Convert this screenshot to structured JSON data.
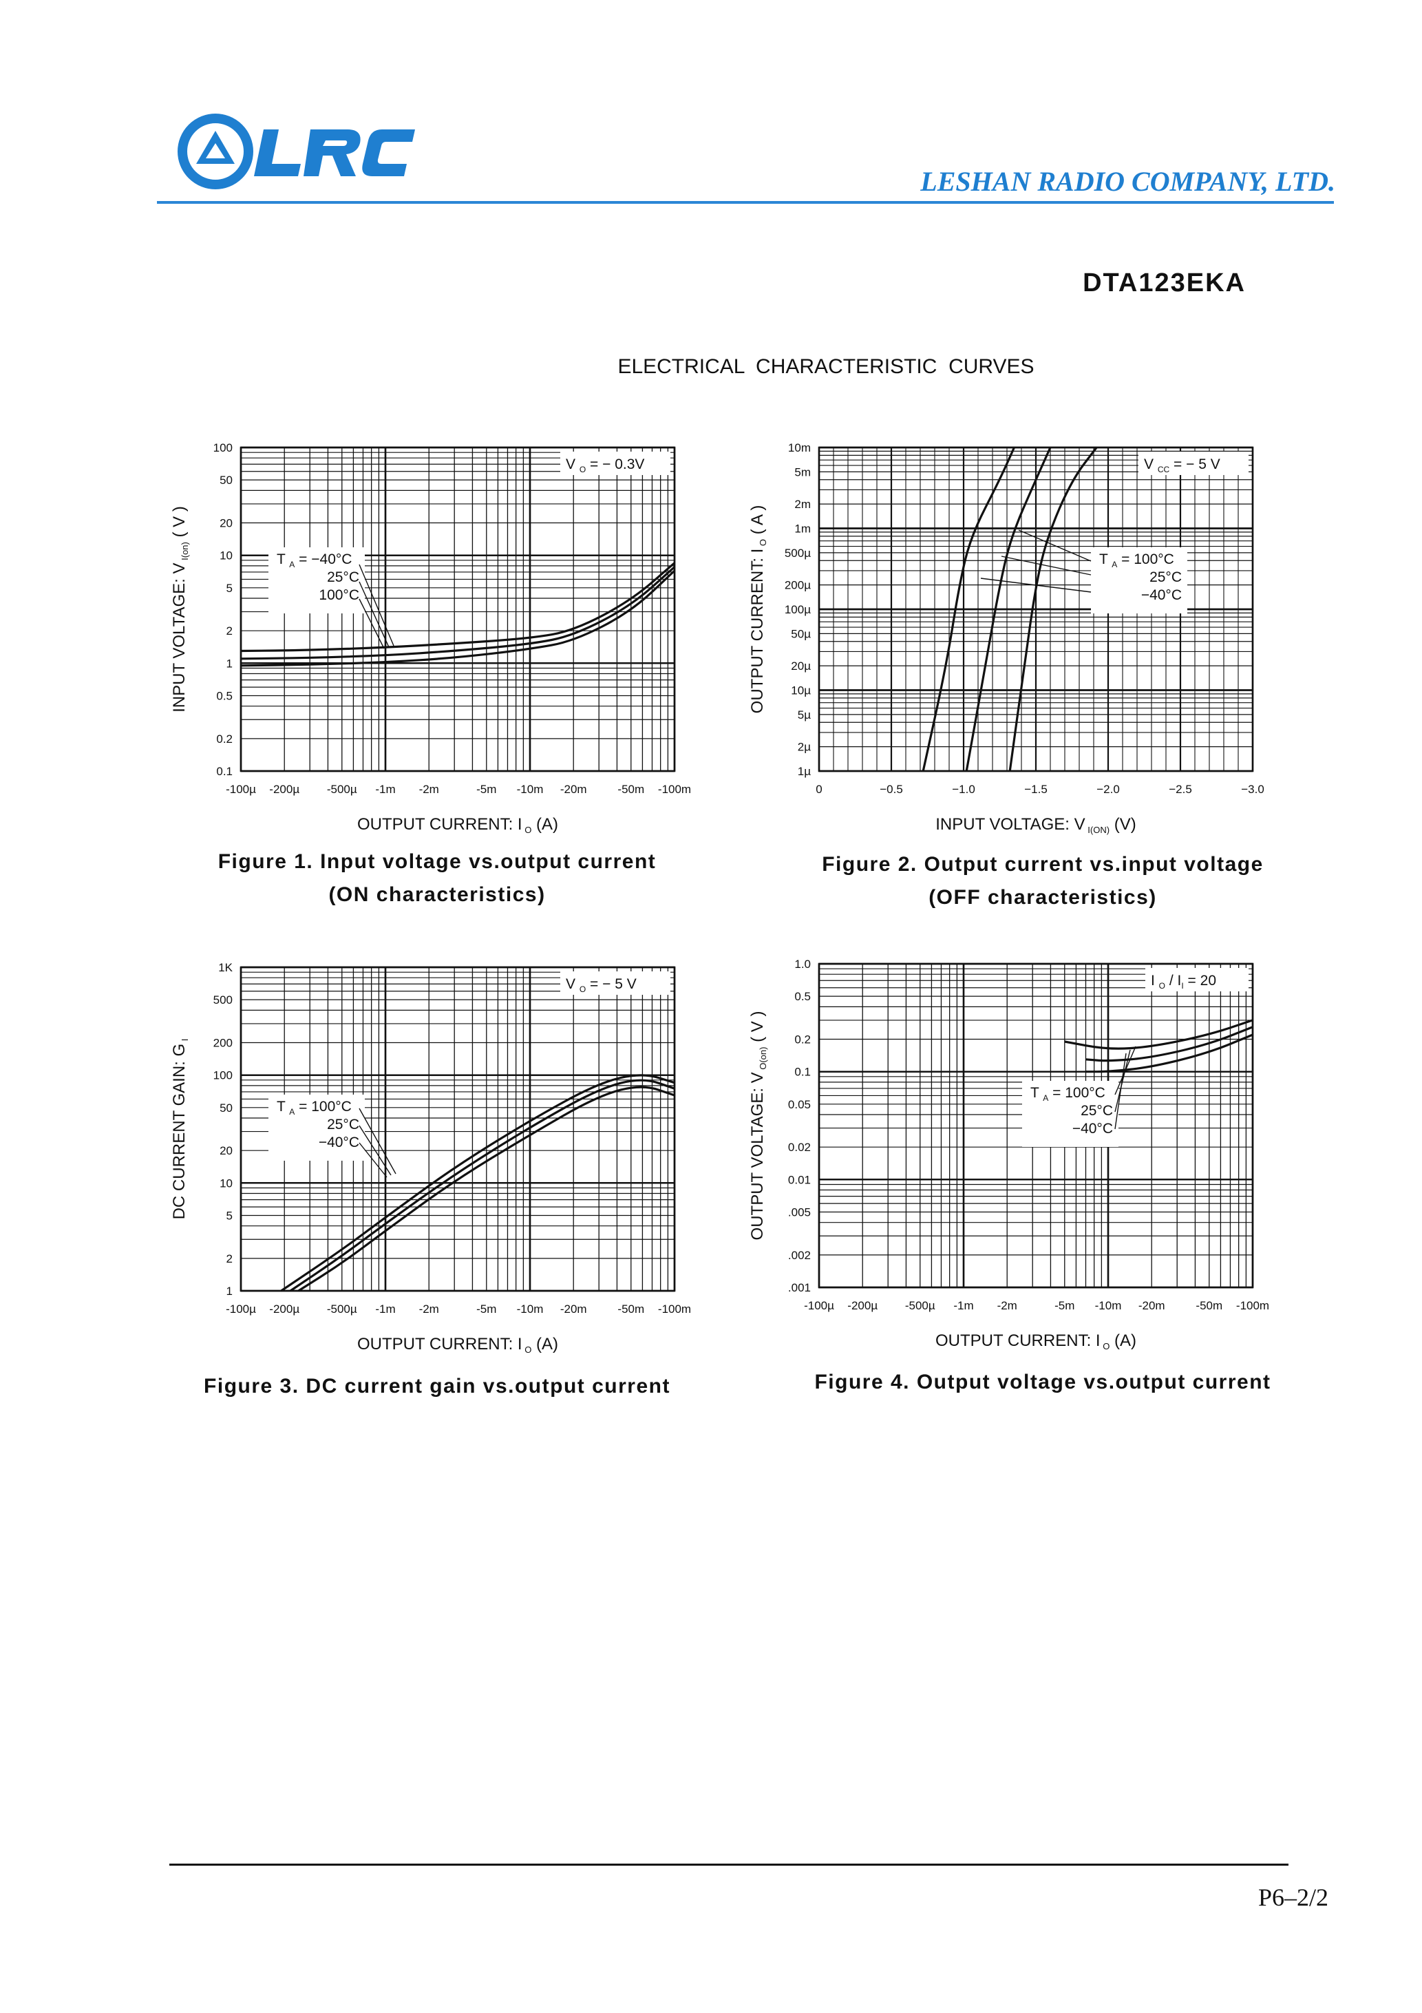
{
  "header": {
    "logo_text": "LRC",
    "company": "LESHAN RADIO COMPANY, LTD.",
    "part_number": "DTA123EKA",
    "section_title": "ELECTRICAL  CHARACTERISTIC  CURVES"
  },
  "figures": [
    {
      "caption_line1": "Figure 1. Input voltage vs.output current",
      "caption_line2": "(ON characteristics)",
      "condition": {
        "symbol": "V",
        "sub": "O",
        "value": "= − 0.3V"
      },
      "ylabel": {
        "main": "INPUT VOLTAGE: V",
        "sub": "I(on)",
        "unit": "( V )"
      },
      "xlabel": {
        "main": "OUTPUT CURRENT: I",
        "sub": "O",
        "unit": "(A)"
      },
      "legend": {
        "head": "T",
        "head_sub": "A",
        "lines": [
          "= −40°C",
          "25°C",
          "100°C"
        ]
      },
      "xticks": [
        "-100µ",
        "-200µ",
        "-500µ",
        "-1m",
        "-2m",
        "-5m",
        "-10m",
        "-20m",
        "-50m",
        "-100m"
      ],
      "yticks": [
        "100",
        "50",
        "20",
        "10",
        "5",
        "2",
        "1",
        "0.5",
        "0.2",
        "0.1"
      ]
    },
    {
      "caption_line1": "Figure 2. Output current vs.input voltage",
      "caption_line2": "(OFF characteristics)",
      "condition": {
        "symbol": "V",
        "sub": "CC",
        "value": "= − 5  V"
      },
      "ylabel": {
        "main": "OUTPUT  CURRENT: I",
        "sub": "O",
        "unit": "( A )"
      },
      "xlabel": {
        "main": "INPUT VOLTAGE: V",
        "sub": "I(ON)",
        "unit": "(V)"
      },
      "legend": {
        "head": "T",
        "head_sub": "A",
        "lines": [
          "= 100°C",
          "25°C",
          "−40°C"
        ]
      },
      "xticks": [
        "0",
        "−0.5",
        "−1.0",
        "−1.5",
        "−2.0",
        "−2.5",
        "−3.0"
      ],
      "yticks": [
        "10m",
        "5m",
        "2m",
        "1m",
        "500µ",
        "200µ",
        "100µ",
        "50µ",
        "20µ",
        "10µ",
        "5µ",
        "2µ",
        "1µ"
      ]
    },
    {
      "caption_line1": "Figure 3. DC current gain vs.output current",
      "caption_line2": "",
      "condition": {
        "symbol": "V",
        "sub": "O",
        "value": "= − 5  V"
      },
      "ylabel": {
        "main": "DC CURRENT GAIN: G",
        "sub": "I",
        "unit": ""
      },
      "xlabel": {
        "main": "OUTPUT CURRENT: I",
        "sub": "O",
        "unit": "(A)"
      },
      "legend": {
        "head": "T",
        "head_sub": "A",
        "lines": [
          "= 100°C",
          "25°C",
          "−40°C"
        ]
      },
      "xticks": [
        "-100µ",
        "-200µ",
        "-500µ",
        "-1m",
        "-2m",
        "-5m",
        "-10m",
        "-20m",
        "-50m",
        "-100m"
      ],
      "yticks": [
        "1K",
        "500",
        "200",
        "100",
        "50",
        "20",
        "10",
        "5",
        "2",
        "1"
      ]
    },
    {
      "caption_line1": "Figure 4. Output voltage vs.output current",
      "caption_line2": "",
      "condition": {
        "symbol": "I",
        "sub": "O",
        "value": "/ I",
        "sub2": "I",
        "value2": "= 20"
      },
      "ylabel": {
        "main": "OUTPUT  VOLTAGE: V",
        "sub": "O(on)",
        "unit": "( V )"
      },
      "xlabel": {
        "main": "OUTPUT CURRENT: I",
        "sub": "O",
        "unit": "(A)"
      },
      "legend": {
        "head": "T",
        "head_sub": "A",
        "lines": [
          "= 100°C",
          "25°C",
          "−40°C"
        ]
      },
      "xticks": [
        "-100µ",
        "-200µ",
        "-500µ",
        "-1m",
        "-2m",
        "-5m",
        "-10m",
        "-20m",
        "-50m",
        "-100m"
      ],
      "yticks": [
        "1.0",
        "0.5",
        "0.2",
        "0.1",
        "0.05",
        "0.02",
        "0.01",
        ".005",
        ".002",
        ".001"
      ]
    }
  ],
  "chart_data": [
    {
      "type": "line",
      "title": "Figure 1. Input voltage vs.output current",
      "xlabel": "OUTPUT CURRENT: IO (A)",
      "ylabel": "INPUT VOLTAGE: VI(on) ( V )",
      "xscale": "log",
      "yscale": "log",
      "xlim": [
        0.0001,
        0.1
      ],
      "ylim": [
        0.1,
        100
      ],
      "grid": true,
      "series": [
        {
          "name": "−40°C",
          "x": [
            0.0001,
            0.0003,
            0.001,
            0.003,
            0.01,
            0.02,
            0.05,
            0.1
          ],
          "y": [
            1.3,
            1.32,
            1.4,
            1.52,
            1.7,
            2.0,
            3.8,
            8.5
          ]
        },
        {
          "name": "25°C",
          "x": [
            0.0001,
            0.0003,
            0.001,
            0.003,
            0.01,
            0.02,
            0.05,
            0.1
          ],
          "y": [
            1.1,
            1.12,
            1.18,
            1.3,
            1.5,
            1.8,
            3.4,
            7.8
          ]
        },
        {
          "name": "100°C",
          "x": [
            0.0001,
            0.0003,
            0.001,
            0.003,
            0.01,
            0.02,
            0.05,
            0.1
          ],
          "y": [
            0.95,
            0.97,
            1.02,
            1.12,
            1.35,
            1.6,
            3.0,
            7.2
          ]
        }
      ]
    },
    {
      "type": "line",
      "title": "Figure 2. Output current vs.input voltage",
      "xlabel": "INPUT VOLTAGE: VI(ON) (V)",
      "ylabel": "OUTPUT CURRENT: IO ( A )",
      "xscale": "linear",
      "yscale": "log",
      "xlim": [
        0,
        -3.0
      ],
      "ylim": [
        1e-06,
        0.01
      ],
      "grid": true,
      "series": [
        {
          "name": "100°C",
          "x": [
            -0.72,
            -0.88,
            -0.97,
            -1.05,
            -1.25,
            -1.35
          ],
          "y": [
            1e-06,
            2e-05,
            0.0002,
            0.0008,
            0.004,
            0.01
          ]
        },
        {
          "name": "25°C",
          "x": [
            -1.02,
            -1.15,
            -1.25,
            -1.33,
            -1.5,
            -1.6
          ],
          "y": [
            1e-06,
            2e-05,
            0.0002,
            0.0008,
            0.004,
            0.01
          ]
        },
        {
          "name": "−40°C",
          "x": [
            -1.32,
            -1.42,
            -1.5,
            -1.58,
            -1.75,
            -1.92
          ],
          "y": [
            1e-06,
            2e-05,
            0.0002,
            0.0008,
            0.004,
            0.01
          ]
        }
      ]
    },
    {
      "type": "line",
      "title": "Figure 3. DC current gain vs.output current",
      "xlabel": "OUTPUT CURRENT: IO (A)",
      "ylabel": "DC CURRENT GAIN: GI",
      "xscale": "log",
      "yscale": "log",
      "xlim": [
        0.0001,
        0.1
      ],
      "ylim": [
        1,
        1000
      ],
      "grid": true,
      "series": [
        {
          "name": "100°C",
          "x": [
            0.00019,
            0.0005,
            0.001,
            0.003,
            0.01,
            0.03,
            0.06,
            0.1
          ],
          "y": [
            1,
            2.4,
            4.8,
            14,
            38,
            85,
            105,
            85
          ]
        },
        {
          "name": "25°C",
          "x": [
            0.00022,
            0.0005,
            0.001,
            0.003,
            0.01,
            0.03,
            0.06,
            0.1
          ],
          "y": [
            1,
            2.1,
            4.2,
            12,
            33,
            75,
            95,
            75
          ]
        },
        {
          "name": "−40°C",
          "x": [
            0.00025,
            0.0005,
            0.001,
            0.003,
            0.01,
            0.03,
            0.06,
            0.1
          ],
          "y": [
            1,
            1.8,
            3.6,
            10.5,
            28,
            65,
            82,
            65
          ]
        }
      ]
    },
    {
      "type": "line",
      "title": "Figure 4. Output voltage vs.output current",
      "xlabel": "OUTPUT CURRENT: IO (A)",
      "ylabel": "OUTPUT VOLTAGE: VO(on) ( V )",
      "xscale": "log",
      "yscale": "log",
      "xlim": [
        0.0001,
        0.1
      ],
      "ylim": [
        0.001,
        1.0
      ],
      "grid": true,
      "series": [
        {
          "name": "100°C",
          "x": [
            0.005,
            0.01,
            0.02,
            0.05,
            0.1
          ],
          "y": [
            0.19,
            0.16,
            0.17,
            0.22,
            0.3
          ]
        },
        {
          "name": "25°C",
          "x": [
            0.007,
            0.01,
            0.02,
            0.05,
            0.1
          ],
          "y": [
            0.13,
            0.125,
            0.135,
            0.18,
            0.26
          ]
        },
        {
          "name": "−40°C",
          "x": [
            0.007,
            0.01,
            0.02,
            0.05,
            0.1
          ],
          "y": [
            0.1,
            0.1,
            0.11,
            0.15,
            0.22
          ]
        }
      ]
    }
  ]
}
